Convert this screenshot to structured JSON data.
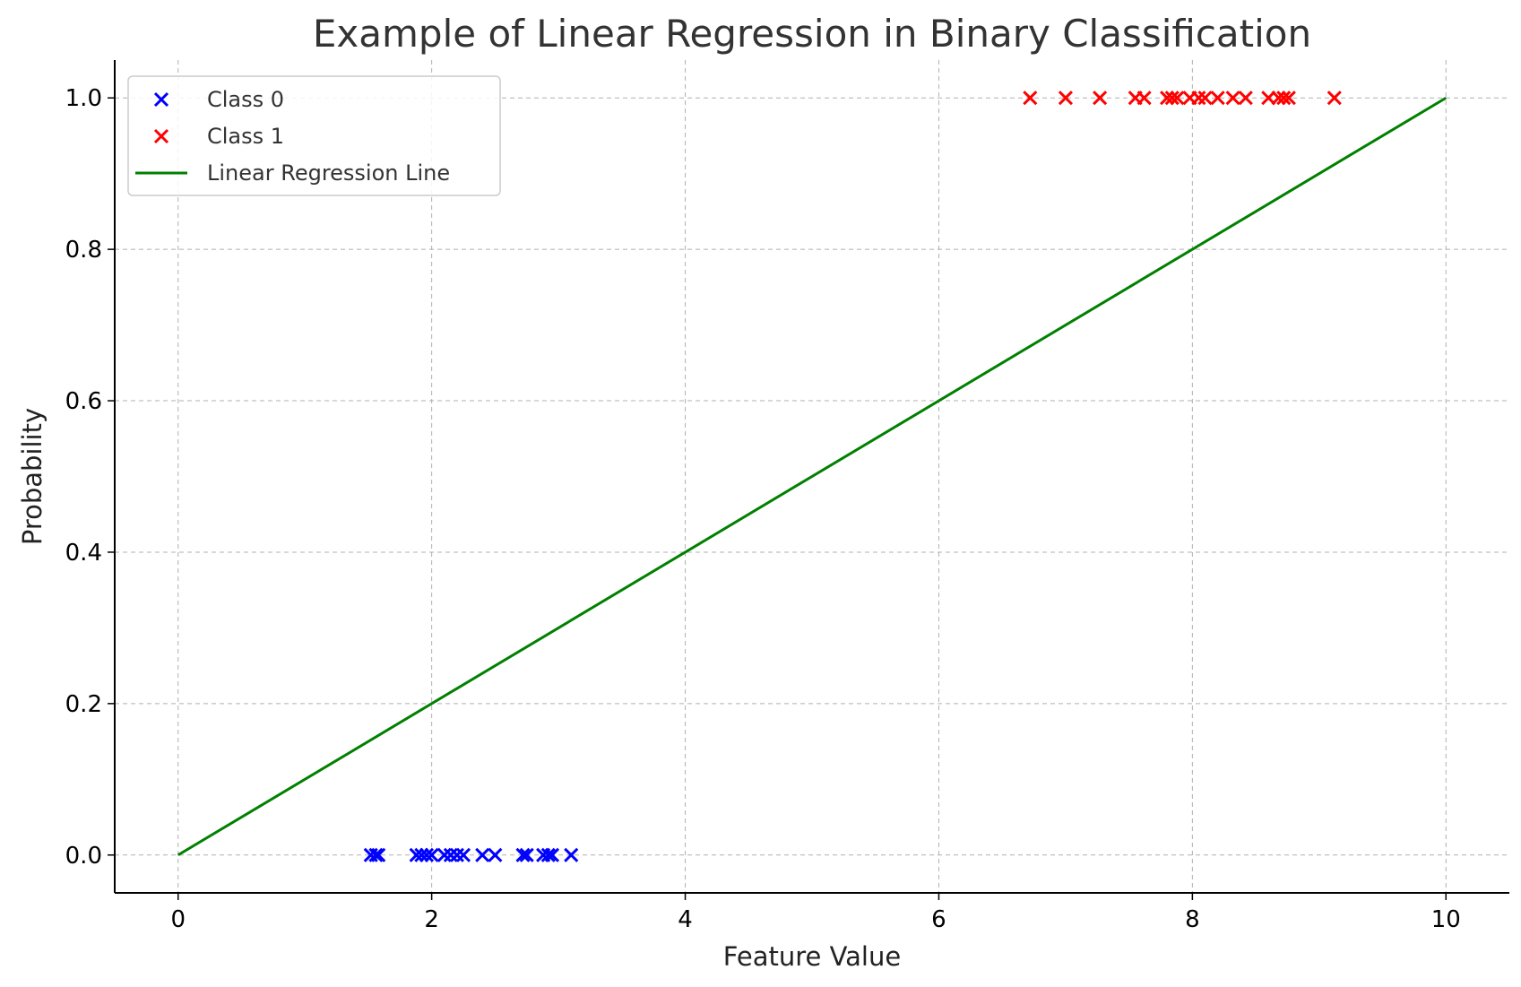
{
  "chart_data": {
    "type": "scatter",
    "title": "Example of Linear Regression in Binary Classification",
    "xlabel": "Feature Value",
    "ylabel": "Probability",
    "xlim": [
      -0.5,
      10.5
    ],
    "ylim": [
      -0.05,
      1.05
    ],
    "xticks": [
      0,
      2,
      4,
      6,
      8,
      10
    ],
    "xtick_labels": [
      "0",
      "2",
      "4",
      "6",
      "8",
      "10"
    ],
    "yticks": [
      0.0,
      0.2,
      0.4,
      0.6,
      0.8,
      1.0
    ],
    "ytick_labels": [
      "0.0",
      "0.2",
      "0.4",
      "0.6",
      "0.8",
      "1.0"
    ],
    "grid": true,
    "legend_position": "top-left",
    "series": [
      {
        "name": "Class 0",
        "kind": "scatter",
        "marker": "x",
        "color": "#0000ff",
        "x": [
          1.52,
          1.56,
          1.58,
          1.88,
          1.92,
          1.96,
          2.0,
          2.1,
          2.15,
          2.2,
          2.25,
          2.4,
          2.5,
          2.72,
          2.75,
          2.88,
          2.92,
          2.95,
          3.1
        ],
        "y": [
          0,
          0,
          0,
          0,
          0,
          0,
          0,
          0,
          0,
          0,
          0,
          0,
          0,
          0,
          0,
          0,
          0,
          0,
          0
        ]
      },
      {
        "name": "Class 1",
        "kind": "scatter",
        "marker": "x",
        "color": "#ff0000",
        "x": [
          6.72,
          7.0,
          7.27,
          7.55,
          7.62,
          7.8,
          7.84,
          7.88,
          7.98,
          8.05,
          8.1,
          8.2,
          8.32,
          8.42,
          8.6,
          8.68,
          8.72,
          8.76,
          9.12
        ],
        "y": [
          1,
          1,
          1,
          1,
          1,
          1,
          1,
          1,
          1,
          1,
          1,
          1,
          1,
          1,
          1,
          1,
          1,
          1,
          1
        ]
      },
      {
        "name": "Linear Regression Line",
        "kind": "line",
        "color": "#008000",
        "x": [
          0,
          10
        ],
        "y": [
          0.0,
          1.0
        ]
      }
    ]
  }
}
